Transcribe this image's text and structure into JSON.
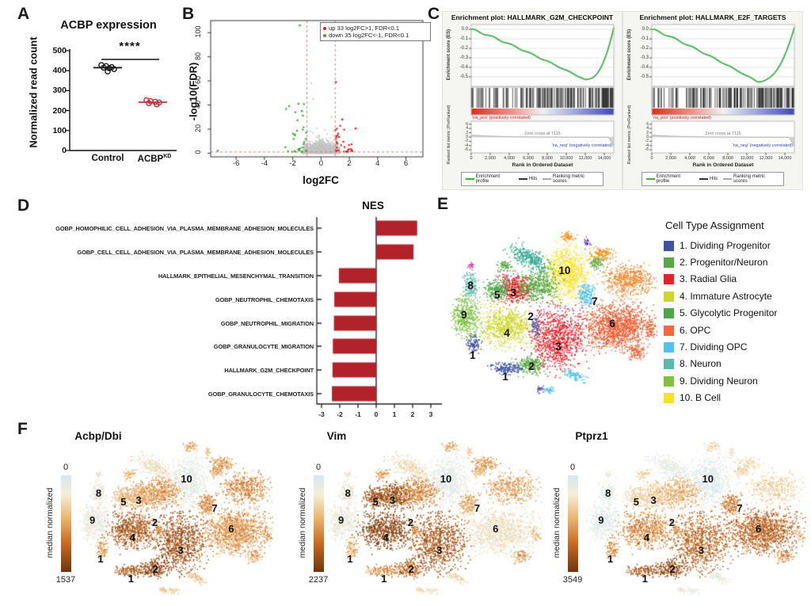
{
  "figure": {
    "panel_labels": [
      "A",
      "B",
      "C",
      "D",
      "E",
      "F"
    ]
  },
  "chart_data": {
    "panel_a": {
      "label": "A",
      "type": "scatter",
      "title": "ACBP expression",
      "ylabel": "Normalized read count",
      "ylim": [
        0,
        500
      ],
      "yticks": [
        0,
        100,
        200,
        300,
        400,
        500
      ],
      "significance": "****",
      "groups": [
        {
          "name": "Control",
          "base": "Control",
          "sup": "",
          "color": "#1a1a1a",
          "mean": 415,
          "values": [
            428,
            423,
            418,
            415,
            412,
            408,
            396
          ]
        },
        {
          "name": "ACBP KD",
          "base": "ACBP",
          "sup": "KD",
          "color": "#bf3238",
          "mean": 242,
          "values": [
            252,
            247,
            244,
            241,
            237,
            231
          ]
        }
      ]
    },
    "panel_b": {
      "label": "B",
      "type": "scatter-volcano",
      "xlabel": "log2FC",
      "ylabel": "-log10(FDR)",
      "xlim": [
        -7.8,
        7.2
      ],
      "ylim": [
        -3,
        110
      ],
      "xticks": [
        -6,
        -4,
        -2,
        0,
        2,
        4,
        6
      ],
      "yticks": [
        0,
        20,
        40,
        60,
        80,
        100
      ],
      "thresholds": {
        "x": [
          -1,
          1
        ],
        "y": 1
      },
      "counts": {
        "up": 33,
        "down": 35
      },
      "legend": [
        {
          "label": "up 33 log2FC>1, FDR<0.1",
          "color": "#e3191c"
        },
        {
          "label": "down 35 log2FC<-1, FDR<0.1",
          "color": "#3aa835"
        }
      ],
      "colors": {
        "up": "#e3191c",
        "down": "#3aa835",
        "ns": "#c3c3c3",
        "threshold": "#e06666"
      },
      "notable_points": {
        "down": [
          [
            -7.3,
            2
          ],
          [
            -1.5,
            106
          ],
          [
            -1.6,
            41
          ],
          [
            -1.35,
            35
          ]
        ],
        "up": [
          [
            1.05,
            59
          ],
          [
            2.45,
            20.5
          ],
          [
            1.5,
            28
          ]
        ],
        "ns": [
          [
            -0.7,
            58
          ],
          [
            0.75,
            30
          ],
          [
            -0.55,
            45
          ]
        ]
      }
    },
    "panel_c": {
      "label": "C",
      "type": "line-gsea",
      "plots": [
        {
          "title": "Enrichment plot: HALLMARK_G2M_CHECKPOINT",
          "es_min": -0.53,
          "t_min": 0.8,
          "zero_cross": "Zero cross at 7115",
          "seed": 7
        },
        {
          "title": "Enrichment plot: HALLMARK_E2F_TARGETS",
          "es_min": -0.55,
          "t_min": 0.74,
          "zero_cross": "Zero cross at 7115",
          "seed": 13
        }
      ],
      "es_ylabel": "Enrichment score (ES)",
      "metric_ylabel": "Ranked list metric (PreRanked)",
      "xlabel": "Rank in Ordered Dataset",
      "es_yticks": [
        "0.0",
        "-0.1",
        "-0.2",
        "-0.3",
        "-0.4",
        "-0.5"
      ],
      "metric_yticks": [
        6,
        4,
        2,
        0,
        -2,
        -4,
        -6
      ],
      "xticks": [
        "0",
        "2,000",
        "4,000",
        "6,000",
        "8,000",
        "10,000",
        "12,000",
        "14,000"
      ],
      "xmax": 15000,
      "pos_label": "'na_pos' (positively correlated)",
      "neg_label": "'na_neg' (negatively correlated)",
      "legend": [
        "Enrichment profile",
        "Hits",
        "Ranking metric scores"
      ],
      "legend_colors": [
        "#3fae49",
        "#333333",
        "#aaaaaa"
      ],
      "curve_color": "#3fae49"
    },
    "panel_d": {
      "label": "D",
      "type": "bar",
      "title": "NES",
      "orientation": "horizontal",
      "categories": [
        "GOBP_HOMOPHILIC_CELL_ADHESION_VIA_PLASMA_MEMBRANE_ADHESION_MOLECULES",
        "GOBP_CELL_CELL_ADHESION_VIA_PLASMA_MEMBRANE_ADHESION_MOLECULES",
        "HALLMARK_EPITHELIAL_MESENCHYMAL_TRANSITION",
        "GOBP_NEUTROPHIL_CHEMOTAXIS",
        "GOBP_NEUTROPHIL_MIGRATION",
        "GOBP_GRANULOCYTE_MIGRATION",
        "HALLMARK_G2M_CHECKPOINT",
        "GOBP_GRANULOCYTE_CHEMOTAXIS"
      ],
      "values": [
        2.25,
        2.05,
        -2.05,
        -2.3,
        -2.32,
        -2.38,
        -2.4,
        -2.43
      ],
      "xticks": [
        -3,
        -2,
        -1,
        0,
        1,
        2,
        3
      ],
      "xlim": [
        -3,
        3
      ],
      "bar_color": "#b2222a"
    },
    "panel_e": {
      "label": "E",
      "type": "scatter-tsne",
      "legend_title": "Cell Type Assignment",
      "items": [
        {
          "label": "1. Dividing Progenitor",
          "color": "#4053a3"
        },
        {
          "label": "2. Progenitor/Neuron",
          "color": "#57a845"
        },
        {
          "label": "3. Radial Glia",
          "color": "#e62129"
        },
        {
          "label": "4. Immature Astrocyte",
          "color": "#cdd62e"
        },
        {
          "label": "5. Glycolytic Progenitor",
          "color": "#4fa648"
        },
        {
          "label": "6. OPC",
          "color": "#ef6a3c"
        },
        {
          "label": "7. Dividing OPC",
          "color": "#4fc2ed"
        },
        {
          "label": "8. Neuron",
          "color": "#5cb8ab"
        },
        {
          "label": "9. Dividing Neuron",
          "color": "#7fc143"
        },
        {
          "label": "10. B Cell",
          "color": "#fde02a"
        }
      ]
    },
    "panel_f": {
      "label": "F",
      "type": "scatter-tsne-feature",
      "scale_label": "median normalized",
      "scale_min": "0",
      "plots": [
        {
          "gene": "Acbp/Dbi",
          "scale_max": "1537"
        },
        {
          "gene": "Vim",
          "scale_max": "2237"
        },
        {
          "gene": "Ptprz1",
          "scale_max": "3549"
        }
      ],
      "colormap": [
        "#d7e7ee",
        "#f5eed7",
        "#eab36b",
        "#c96b22",
        "#70350a"
      ]
    },
    "tsne": {
      "blobs": [
        {
          "id": "b10",
          "u": 0.561,
          "v": 0.261,
          "rx": 0.1,
          "ry": 0.145,
          "n": 800,
          "color": "#fde02a"
        },
        {
          "id": "bseagr",
          "u": 0.385,
          "v": 0.175,
          "rx": 0.105,
          "ry": 0.048,
          "n": 330,
          "color": "#38a88e",
          "tilt": 0.65
        },
        {
          "id": "bor_top",
          "u": 0.568,
          "v": 0.046,
          "rx": 0.035,
          "ry": 0.028,
          "n": 60,
          "color": "#f5921e"
        },
        {
          "id": "bpurple",
          "u": 0.66,
          "v": 0.085,
          "rx": 0.013,
          "ry": 0.03,
          "n": 28,
          "color": "#6a4aa8"
        },
        {
          "id": "bor_ne1",
          "u": 0.73,
          "v": 0.15,
          "rx": 0.055,
          "ry": 0.04,
          "n": 140,
          "color": "#f5921e"
        },
        {
          "id": "bor_ne2",
          "u": 0.855,
          "v": 0.3,
          "rx": 0.115,
          "ry": 0.085,
          "n": 520,
          "color": "#f0872c"
        },
        {
          "id": "bgr_ne",
          "u": 0.705,
          "v": 0.2,
          "rx": 0.03,
          "ry": 0.035,
          "n": 70,
          "color": "#57a845"
        },
        {
          "id": "b7",
          "u": 0.655,
          "v": 0.395,
          "rx": 0.04,
          "ry": 0.062,
          "n": 180,
          "color": "#4fc2ed"
        },
        {
          "id": "b6",
          "u": 0.8,
          "v": 0.57,
          "rx": 0.155,
          "ry": 0.125,
          "n": 1350,
          "color": "#ea5f33"
        },
        {
          "id": "b6s",
          "u": 0.895,
          "v": 0.72,
          "rx": 0.04,
          "ry": 0.038,
          "n": 90,
          "color": "#ea5f33"
        },
        {
          "id": "b3top",
          "u": 0.315,
          "v": 0.345,
          "rx": 0.08,
          "ry": 0.075,
          "n": 430,
          "color": "#e62129"
        },
        {
          "id": "b5",
          "u": 0.225,
          "v": 0.355,
          "rx": 0.058,
          "ry": 0.058,
          "n": 220,
          "color": "#4fa648"
        },
        {
          "id": "b2top",
          "u": 0.425,
          "v": 0.33,
          "rx": 0.095,
          "ry": 0.085,
          "n": 460,
          "color": "#57a845"
        },
        {
          "id": "bgr_sm",
          "u": 0.26,
          "v": 0.215,
          "rx": 0.035,
          "ry": 0.03,
          "n": 70,
          "color": "#57a845"
        },
        {
          "id": "b4",
          "u": 0.27,
          "v": 0.56,
          "rx": 0.115,
          "ry": 0.11,
          "n": 720,
          "color": "#cdd62e"
        },
        {
          "id": "b3big",
          "u": 0.515,
          "v": 0.635,
          "rx": 0.12,
          "ry": 0.17,
          "n": 950,
          "color": "#e62129"
        },
        {
          "id": "b2bot",
          "u": 0.385,
          "v": 0.795,
          "rx": 0.062,
          "ry": 0.048,
          "n": 230,
          "color": "#57a845"
        },
        {
          "id": "b1a",
          "u": 0.115,
          "v": 0.665,
          "rx": 0.03,
          "ry": 0.06,
          "n": 110,
          "color": "#4053a3"
        },
        {
          "id": "b1b",
          "u": 0.265,
          "v": 0.81,
          "rx": 0.075,
          "ry": 0.032,
          "n": 160,
          "color": "#4053a3"
        },
        {
          "id": "b1c",
          "u": 0.408,
          "v": 0.565,
          "rx": 0.022,
          "ry": 0.05,
          "n": 60,
          "color": "#4053a3"
        },
        {
          "id": "b8",
          "u": 0.095,
          "v": 0.33,
          "rx": 0.035,
          "ry": 0.072,
          "n": 160,
          "color": "#5cb8ab"
        },
        {
          "id": "bmag",
          "u": 0.1,
          "v": 0.215,
          "rx": 0.014,
          "ry": 0.022,
          "n": 22,
          "color": "#d8389c"
        },
        {
          "id": "b9",
          "u": 0.075,
          "v": 0.51,
          "rx": 0.065,
          "ry": 0.105,
          "n": 430,
          "color": "#7fc143"
        },
        {
          "id": "btealb",
          "u": 0.6,
          "v": 0.85,
          "rx": 0.058,
          "ry": 0.025,
          "n": 90,
          "color": "#4fc2ed",
          "tilt": 0.5
        },
        {
          "id": "btealc",
          "u": 0.48,
          "v": 0.935,
          "rx": 0.03,
          "ry": 0.018,
          "n": 40,
          "color": "#4fc2ed"
        },
        {
          "id": "bpurp2",
          "u": 0.43,
          "v": 0.93,
          "rx": 0.015,
          "ry": 0.022,
          "n": 26,
          "color": "#6a4aa8"
        },
        {
          "id": "bor_r",
          "u": 0.965,
          "v": 0.58,
          "rx": 0.022,
          "ry": 0.048,
          "n": 55,
          "color": "#ea5f33"
        }
      ],
      "labels": [
        {
          "t": "8",
          "u": 0.1,
          "v": 0.335
        },
        {
          "t": "5",
          "u": 0.228,
          "v": 0.39
        },
        {
          "t": "3",
          "u": 0.306,
          "v": 0.38
        },
        {
          "t": "9",
          "u": 0.068,
          "v": 0.505
        },
        {
          "t": "2",
          "u": 0.39,
          "v": 0.515
        },
        {
          "t": "4",
          "u": 0.275,
          "v": 0.61
        },
        {
          "t": "10",
          "u": 0.553,
          "v": 0.25
        },
        {
          "t": "7",
          "u": 0.698,
          "v": 0.428
        },
        {
          "t": "6",
          "u": 0.783,
          "v": 0.558
        },
        {
          "t": "3",
          "u": 0.523,
          "v": 0.69
        },
        {
          "t": "1",
          "u": 0.11,
          "v": 0.742
        },
        {
          "t": "2",
          "u": 0.393,
          "v": 0.805
        },
        {
          "t": "1",
          "u": 0.267,
          "v": 0.865
        }
      ],
      "intensity": {
        "Acbp/Dbi": {
          "b10": 0.1,
          "bseagr": 0.22,
          "bor_top": 0.5,
          "bpurple": 0.35,
          "bor_ne1": 0.55,
          "bor_ne2": 0.6,
          "bgr_ne": 0.5,
          "b7": 0.6,
          "b6": 0.55,
          "b6s": 0.5,
          "b3top": 0.5,
          "b5": 0.4,
          "b2top": 0.55,
          "bgr_sm": 0.4,
          "b4": 0.8,
          "b3big": 0.85,
          "b2bot": 0.92,
          "b1a": 0.5,
          "b1b": 0.8,
          "b1c": 0.65,
          "b8": 0.15,
          "bmag": 0.2,
          "b9": 0.13,
          "btealb": 0.35,
          "btealc": 0.3,
          "bpurp2": 0.4,
          "bor_r": 0.5
        },
        "Vim": {
          "b10": 0.08,
          "bseagr": 0.25,
          "bor_top": 0.5,
          "bpurple": 0.3,
          "bor_ne1": 0.55,
          "bor_ne2": 0.5,
          "bgr_ne": 0.45,
          "b7": 0.5,
          "b6": 0.22,
          "b6s": 0.55,
          "b3top": 0.9,
          "b5": 0.85,
          "b2top": 0.6,
          "bgr_sm": 0.5,
          "b4": 0.95,
          "b3big": 0.82,
          "b2bot": 0.75,
          "b1a": 0.45,
          "b1b": 0.6,
          "b1c": 0.65,
          "b8": 0.18,
          "bmag": 0.2,
          "b9": 0.16,
          "btealb": 0.25,
          "btealc": 0.2,
          "bpurp2": 0.3,
          "bor_r": 0.4
        },
        "Ptprz1": {
          "b10": 0.03,
          "bseagr": 0.08,
          "bor_top": 0.3,
          "bpurple": 0.2,
          "bor_ne1": 0.25,
          "bor_ne2": 0.3,
          "bgr_ne": 0.3,
          "b7": 0.65,
          "b6": 0.75,
          "b6s": 0.6,
          "b3top": 0.35,
          "b5": 0.28,
          "b2top": 0.45,
          "bgr_sm": 0.3,
          "b4": 0.6,
          "b3big": 0.75,
          "b2bot": 0.88,
          "b1a": 0.55,
          "b1b": 0.82,
          "b1c": 0.6,
          "b8": 0.05,
          "bmag": 0.1,
          "b9": 0.05,
          "btealb": 0.1,
          "btealc": 0.08,
          "bpurp2": 0.2,
          "bor_r": 0.3
        }
      }
    }
  }
}
